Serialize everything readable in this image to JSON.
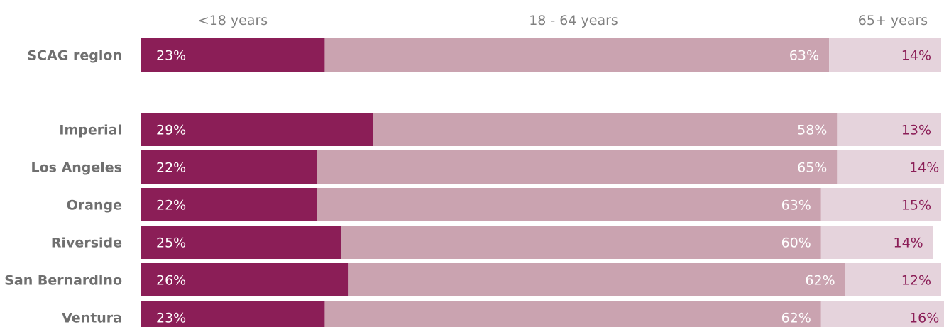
{
  "chart_data": {
    "type": "bar",
    "stacked": "100%",
    "orientation": "horizontal",
    "categories": [
      "SCAG region",
      "Imperial",
      "Los Angeles",
      "Orange",
      "Riverside",
      "San Bernardino",
      "Ventura"
    ],
    "series": [
      {
        "name": "<18 years",
        "color": "#8b1e57",
        "values": [
          23,
          29,
          22,
          22,
          25,
          26,
          23
        ],
        "labels": [
          "23%",
          "29%",
          "22%",
          "22%",
          "25%",
          "26%",
          "23%"
        ]
      },
      {
        "name": "18 - 64 years",
        "color": "#caa3b0",
        "values": [
          63,
          58,
          65,
          63,
          60,
          62,
          62
        ],
        "labels": [
          "63%",
          "58%",
          "65%",
          "63%",
          "60%",
          "62%",
          "62%"
        ]
      },
      {
        "name": "65+ years",
        "color": "#e5d3dc",
        "values": [
          14,
          13,
          14,
          15,
          14,
          12,
          16
        ],
        "labels": [
          "14%",
          "13%",
          "14%",
          "15%",
          "14%",
          "12%",
          "16%"
        ]
      }
    ],
    "legend": "top",
    "title": "",
    "xlabel": "",
    "ylabel": ""
  }
}
